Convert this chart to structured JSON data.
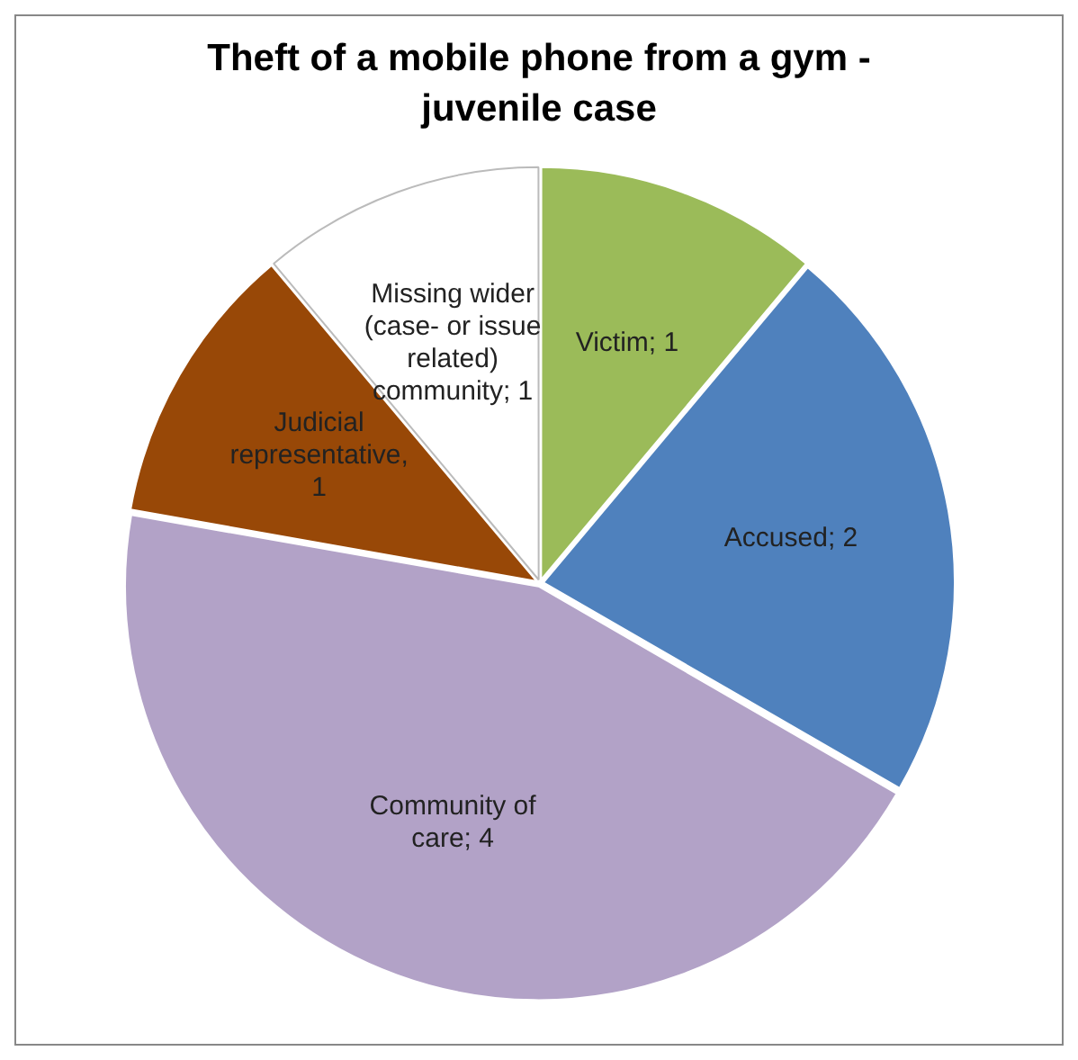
{
  "chart_data": {
    "type": "pie",
    "title": "Theft of a mobile phone from a gym - juvenile case",
    "categories": [
      "Victim",
      "Accused",
      "Community of care",
      "Judicial representative",
      "Missing wider (case- or issue related) community"
    ],
    "values": [
      1,
      2,
      4,
      1,
      1
    ],
    "colors": [
      "#9bbb59",
      "#4f81bd",
      "#b2a2c7",
      "#984807",
      "#ffffff"
    ],
    "value_labels": [
      "; 1",
      "; 2",
      "; 4",
      ", 1",
      "; 1"
    ],
    "legend": false
  }
}
